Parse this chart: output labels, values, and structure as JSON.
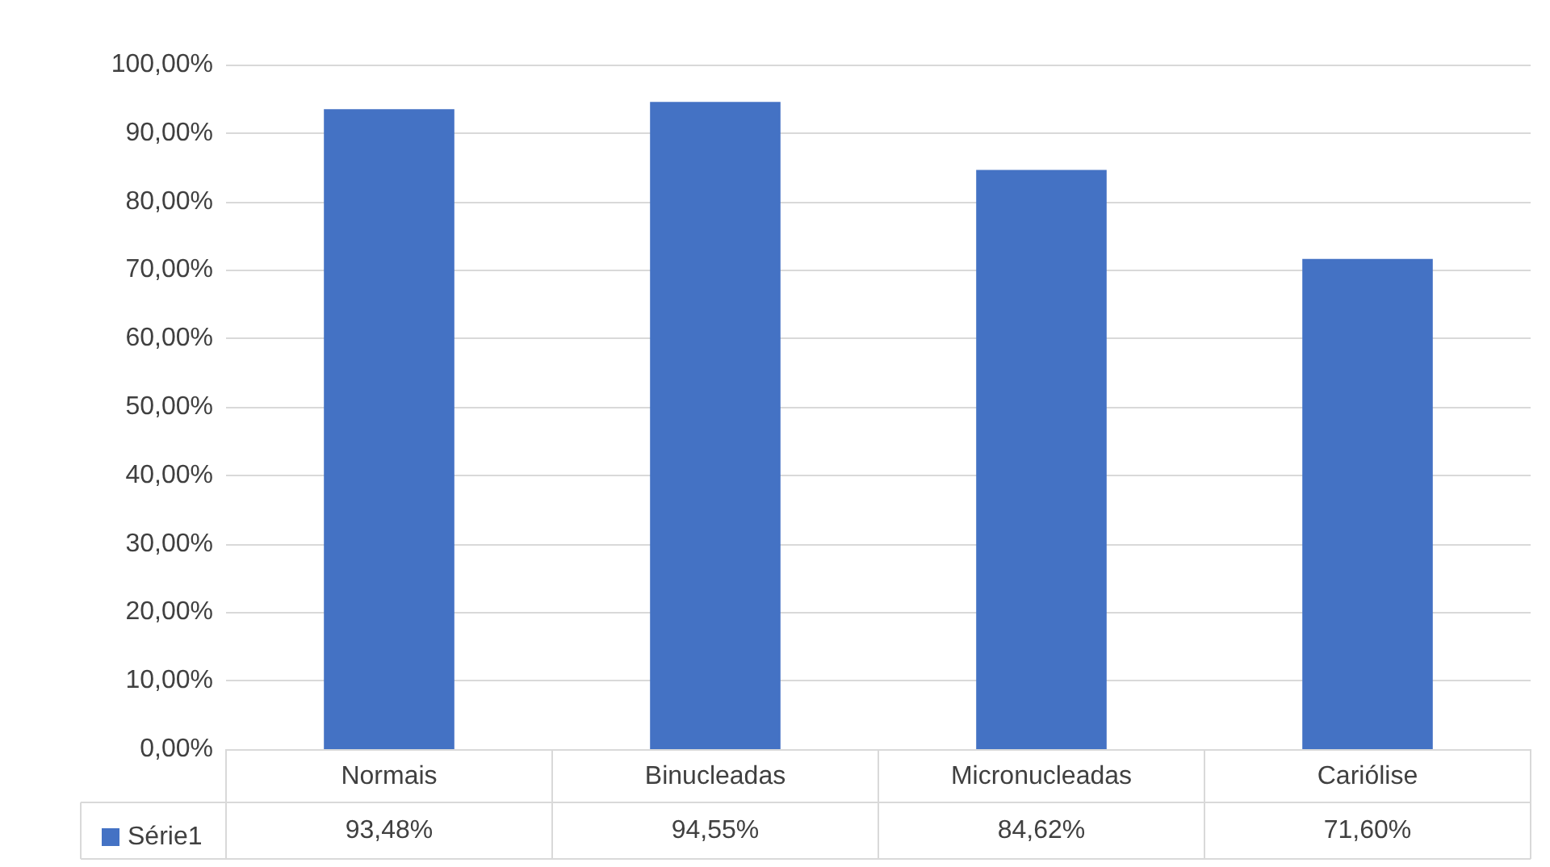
{
  "chart_data": {
    "type": "bar",
    "categories": [
      "Normais",
      "Binucleadas",
      "Micronucleadas",
      "Cariólise"
    ],
    "series": [
      {
        "name": "Série1",
        "color": "#4472c4",
        "values": [
          93.48,
          94.55,
          84.62,
          71.6
        ],
        "value_labels": [
          "93,48%",
          "94,55%",
          "84,62%",
          "71,60%"
        ]
      }
    ],
    "ylim": [
      0,
      100
    ],
    "yticks": [
      {
        "value": 0,
        "label": "0,00%"
      },
      {
        "value": 10,
        "label": "10,00%"
      },
      {
        "value": 20,
        "label": "20,00%"
      },
      {
        "value": 30,
        "label": "30,00%"
      },
      {
        "value": 40,
        "label": "40,00%"
      },
      {
        "value": 50,
        "label": "50,00%"
      },
      {
        "value": 60,
        "label": "60,00%"
      },
      {
        "value": 70,
        "label": "70,00%"
      },
      {
        "value": 80,
        "label": "80,00%"
      },
      {
        "value": 90,
        "label": "90,00%"
      },
      {
        "value": 100,
        "label": "100,00%"
      }
    ],
    "grid": "y",
    "legend": "bottom left"
  }
}
